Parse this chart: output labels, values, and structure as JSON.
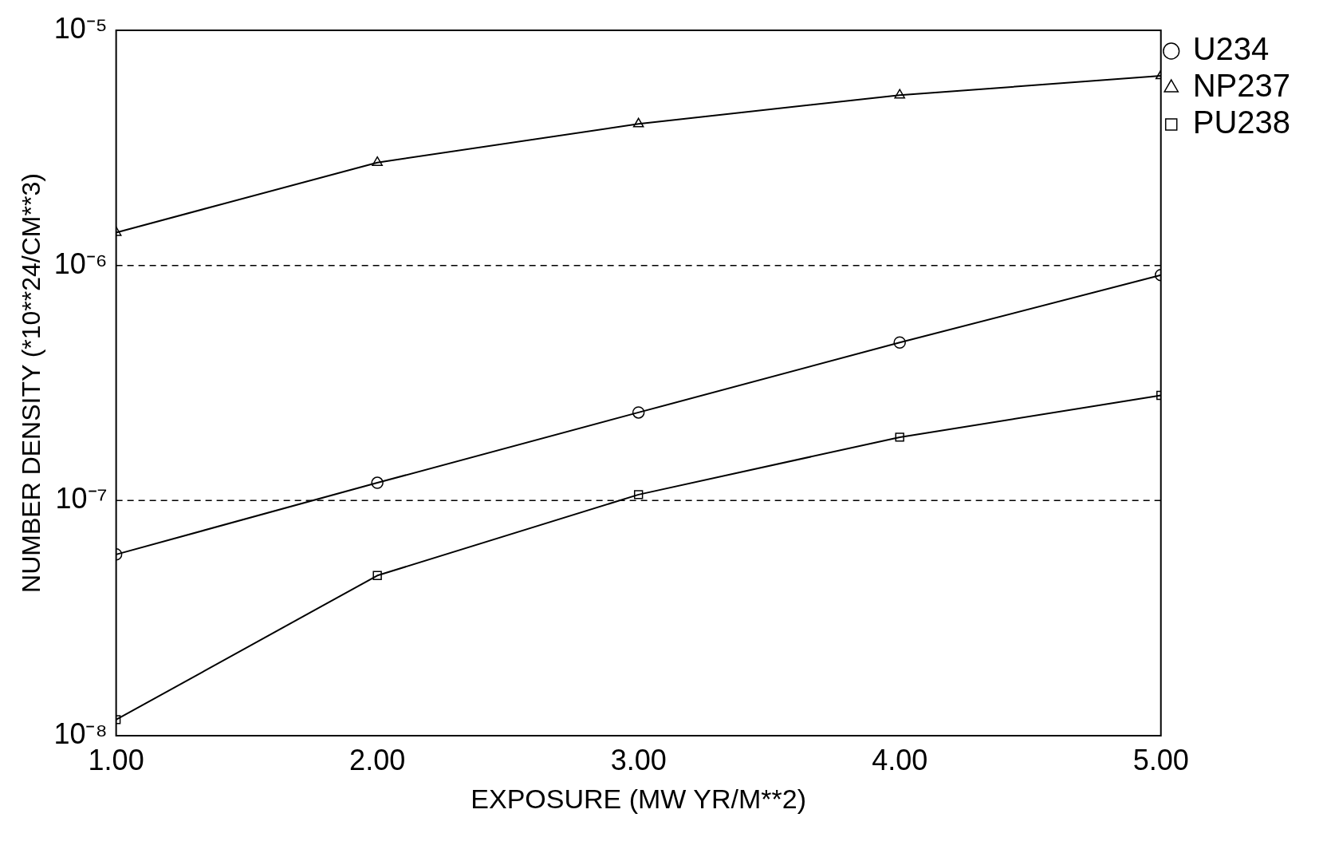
{
  "chart_data": {
    "type": "line",
    "xlabel": "EXPOSURE (MW YR/M**2)",
    "ylabel": "NUMBER DENSITY (*10**24/CM**3)",
    "x": [
      1,
      2,
      3,
      4,
      5
    ],
    "xlim": [
      1,
      5
    ],
    "xticks": [
      {
        "value": 1,
        "label": "1.00"
      },
      {
        "value": 2,
        "label": "2.00"
      },
      {
        "value": 3,
        "label": "3.00"
      },
      {
        "value": 4,
        "label": "4.00"
      },
      {
        "value": 5,
        "label": "5.00"
      }
    ],
    "log": "y",
    "ylim": [
      1e-08,
      1e-05
    ],
    "yticks": [
      {
        "value": 1e-08,
        "label": "10⁻⁸"
      },
      {
        "value": 1e-07,
        "label": "10⁻⁷"
      },
      {
        "value": 1e-06,
        "label": "10⁻⁶"
      },
      {
        "value": 1e-05,
        "label": "10⁻⁵"
      }
    ],
    "series": [
      {
        "name": "U234",
        "color": "#000000",
        "marker": "circle",
        "values": [
          5.9e-08,
          1.19e-07,
          2.37e-07,
          4.7e-07,
          9.1e-07
        ]
      },
      {
        "name": "NP237",
        "color": "#000000",
        "marker": "triangle",
        "values": [
          1.38e-06,
          2.74e-06,
          4e-06,
          5.3e-06,
          6.4e-06
        ]
      },
      {
        "name": "PU238",
        "color": "#000000",
        "marker": "square",
        "values": [
          1.17e-08,
          4.8e-08,
          1.06e-07,
          1.86e-07,
          2.8e-07
        ]
      }
    ],
    "ref_lines": [
      {
        "axis": "y",
        "value": 1e-06,
        "line_style": "dashed",
        "color": "#000000"
      },
      {
        "axis": "y",
        "value": 1e-07,
        "line_style": "dashed",
        "color": "#000000"
      }
    ],
    "grid": false,
    "legend": "top right",
    "line_style": "solid"
  }
}
